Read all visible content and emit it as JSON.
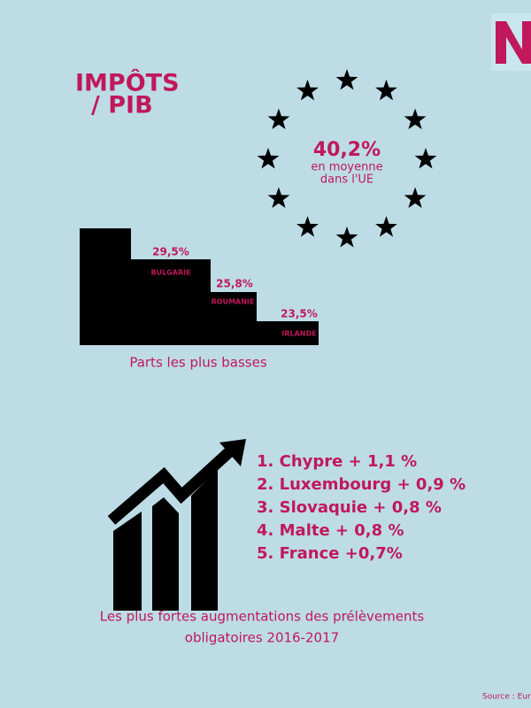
{
  "header": {
    "title_lines": [
      "IMPÔTS",
      "/ PIB"
    ]
  },
  "eu_average": {
    "value": "40,2%",
    "caption_lines": [
      "en moyenne",
      "dans l'UE"
    ]
  },
  "lowest": {
    "items": [
      {
        "value": "29,5%",
        "country": "BULGARIE"
      },
      {
        "value": "25,8%",
        "country": "ROUMANIE"
      },
      {
        "value": "23,5%",
        "country": "IRLANDE"
      }
    ],
    "caption": "Parts les plus basses"
  },
  "increases": {
    "items": [
      "1. Chypre + 1,1 %",
      "2. Luxembourg + 0,9 %",
      "3. Slovaquie + 0,8 %",
      "4. Malte + 0,8 %",
      "5. France +0,7%"
    ],
    "caption_lines": [
      "Les plus fortes augmentations des prélèvements",
      "obligatoires  2016-2017"
    ]
  },
  "source": "Source : Eur"
}
